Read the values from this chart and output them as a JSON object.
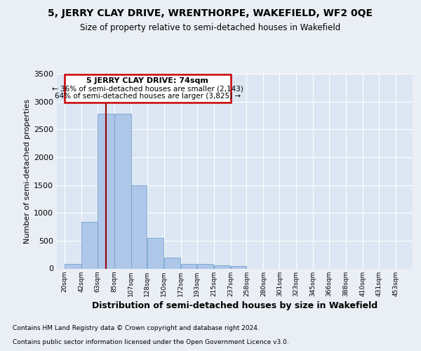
{
  "title": "5, JERRY CLAY DRIVE, WRENTHORPE, WAKEFIELD, WF2 0QE",
  "subtitle": "Size of property relative to semi-detached houses in Wakefield",
  "xlabel": "Distribution of semi-detached houses by size in Wakefield",
  "ylabel": "Number of semi-detached properties",
  "property_label": "5 JERRY CLAY DRIVE: 74sqm",
  "pct_smaller": 36,
  "pct_larger": 64,
  "n_smaller": 2143,
  "n_larger": 3825,
  "bar_left_edges": [
    20,
    42,
    63,
    85,
    107,
    128,
    150,
    172,
    193,
    215,
    237,
    258,
    280,
    301,
    323,
    345,
    366,
    388,
    410,
    431,
    453
  ],
  "bar_widths": [
    22,
    21,
    22,
    22,
    21,
    22,
    22,
    21,
    22,
    22,
    21,
    22,
    21,
    22,
    22,
    21,
    22,
    22,
    21,
    22,
    22
  ],
  "bar_heights": [
    80,
    840,
    2775,
    2775,
    1500,
    550,
    200,
    80,
    80,
    60,
    40,
    0,
    0,
    0,
    0,
    0,
    0,
    0,
    0,
    0,
    0
  ],
  "bar_color": "#aec6e8",
  "bar_edge_color": "#6699cc",
  "vline_color": "#990000",
  "vline_x": 74,
  "box_edge_color": "#cc0000",
  "ylim": [
    0,
    3500
  ],
  "xlim": [
    10,
    475
  ],
  "tick_labels": [
    "20sqm",
    "42sqm",
    "63sqm",
    "85sqm",
    "107sqm",
    "128sqm",
    "150sqm",
    "172sqm",
    "193sqm",
    "215sqm",
    "237sqm",
    "258sqm",
    "280sqm",
    "301sqm",
    "323sqm",
    "345sqm",
    "366sqm",
    "388sqm",
    "410sqm",
    "431sqm",
    "453sqm"
  ],
  "tick_positions": [
    20,
    42,
    63,
    85,
    107,
    128,
    150,
    172,
    193,
    215,
    237,
    258,
    280,
    301,
    323,
    345,
    366,
    388,
    410,
    431,
    453
  ],
  "footer_line1": "Contains HM Land Registry data © Crown copyright and database right 2024.",
  "footer_line2": "Contains public sector information licensed under the Open Government Licence v3.0.",
  "bg_color": "#eaeff5",
  "plot_bg_color": "#dce7f3"
}
